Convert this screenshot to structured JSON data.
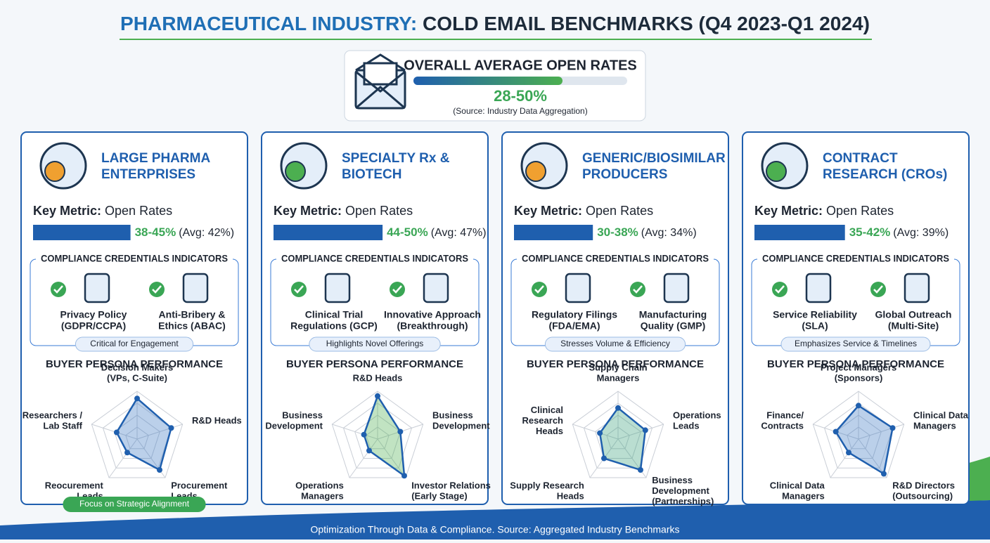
{
  "header": {
    "title_part1": "PHARMACEUTICAL INDUSTRY:",
    "title_part2": "COLD EMAIL BENCHMARKS (Q4 2023-Q1 2024)"
  },
  "overall": {
    "title": "OVERALL AVERAGE OPEN RATES",
    "range": "28-50%",
    "source": "(Source: Industry Data Aggregation)"
  },
  "segments": [
    {
      "title": [
        "LARGE PHARMA",
        "ENTERPRISES"
      ],
      "metric_label": "Key Metric:",
      "metric_name": "Open Rates",
      "range": "38-45%",
      "avg": {
        "value": 42,
        "label": "(Avg: 42%)"
      },
      "compliance_title": "COMPLIANCE CREDENTIALS INDICATORS",
      "indicators": [
        [
          "Privacy Policy",
          "(GDPR/CCPA)"
        ],
        [
          "Anti-Bribery &",
          "Ethics (ABAC)"
        ]
      ],
      "note": "Critical for Engagement",
      "persona_title": "BUYER PERSONA PERFORMANCE",
      "radar": {
        "type": "radar",
        "axes": [
          [
            "Decision Makers",
            "(VPs, C-Suite)"
          ],
          [
            "R&D Heads"
          ],
          [
            "Procurement",
            "Leads"
          ],
          [
            "Reocurement",
            "Leads"
          ],
          [
            "Researchers /",
            "Lab Staff"
          ]
        ],
        "values": [
          0.85,
          0.75,
          0.8,
          0.35,
          0.45
        ],
        "color": "#3b78c4"
      },
      "footer_note": "Focus on Strategic Alignment"
    },
    {
      "title": [
        "SPECIALTY Rx &",
        "BIOTECH"
      ],
      "metric_label": "Key Metric:",
      "metric_name": "Open Rates",
      "range": "44-50%",
      "avg": {
        "value": 47,
        "label": "(Avg: 47%)"
      },
      "compliance_title": "COMPLIANCE CREDENTIALS INDICATORS",
      "indicators": [
        [
          "Clinical Trial",
          "Regulations (GCP)"
        ],
        [
          "Innovative Approach",
          "(Breakthrough)"
        ]
      ],
      "note": "Highlights Novel Offerings",
      "persona_title": "BUYER PERSONA PERFORMANCE",
      "radar": {
        "type": "radar",
        "axes": [
          [
            "R&D Heads"
          ],
          [
            "Business",
            "Development"
          ],
          [
            "Investor Relations",
            "(Early Stage)"
          ],
          [
            "Operations",
            "Managers"
          ],
          [
            "Business",
            "Development"
          ]
        ],
        "values": [
          0.9,
          0.5,
          0.95,
          0.3,
          0.3
        ],
        "color": "#4caf50"
      }
    },
    {
      "title": [
        "GENERIC/BIOSIMILAR",
        "PRODUCERS"
      ],
      "metric_label": "Key Metric:",
      "metric_name": "Open Rates",
      "range": "30-38%",
      "avg": {
        "value": 34,
        "label": "(Avg: 34%)"
      },
      "compliance_title": "COMPLIANCE CREDENTIALS INDICATORS",
      "indicators": [
        [
          "Regulatory Filings",
          "(FDA/EMA)"
        ],
        [
          "Manufacturing",
          "Quality (GMP)"
        ]
      ],
      "note": "Stresses Volume & Efficiency",
      "persona_title": "BUYER PERSONA PERFORMANCE",
      "radar": {
        "type": "radar",
        "axes": [
          [
            "Supply Chain",
            "Managers"
          ],
          [
            "Operations",
            "Leads"
          ],
          [
            "Business",
            "Development",
            "(Partnerships)"
          ],
          [
            "Supply Research",
            "Heads"
          ],
          [
            "Clinical",
            "Research",
            "Heads"
          ]
        ],
        "values": [
          0.65,
          0.6,
          0.8,
          0.5,
          0.4
        ],
        "color": "#3aa07a"
      }
    },
    {
      "title": [
        "CONTRACT",
        "RESEARCH (CROs)"
      ],
      "metric_label": "Key Metric:",
      "metric_name": "Open Rates",
      "range": "35-42%",
      "avg": {
        "value": 39,
        "label": "(Avg: 39%)"
      },
      "compliance_title": "COMPLIANCE CREDENTIALS INDICATORS",
      "indicators": [
        [
          "Service Reliability",
          "(SLA)"
        ],
        [
          "Global Outreach",
          "(Multi-Site)"
        ]
      ],
      "note": "Emphasizes Service & Timelines",
      "persona_title": "BUYER PERSONA PERFORMANCE",
      "radar": {
        "type": "radar",
        "axes": [
          [
            "Project Managers",
            "(Sponsors)"
          ],
          [
            "Clinical Data",
            "Managers"
          ],
          [
            "R&D Directors",
            "(Outsourcing)"
          ],
          [
            "Clinical Data",
            "Managers"
          ],
          [
            "Finance/",
            "Contracts"
          ]
        ],
        "values": [
          0.7,
          0.75,
          0.9,
          0.35,
          0.5
        ],
        "color": "#3b78c4"
      }
    }
  ],
  "footer": "Optimization Through Data & Compliance. Source: Aggregated Industry Benchmarks"
}
